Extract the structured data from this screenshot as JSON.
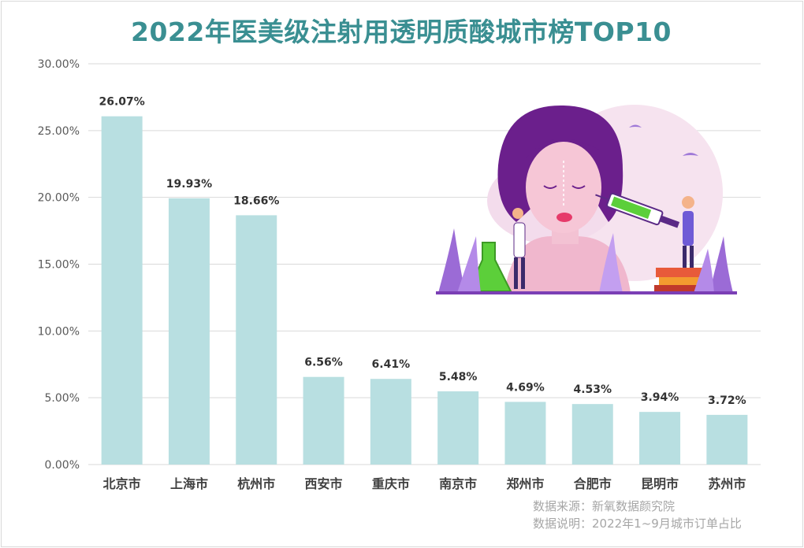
{
  "title": "2022年医美级注射用透明质酸城市榜TOP10",
  "source": {
    "line1": "数据来源：新氧数据颜究院",
    "line2": "数据说明：2022年1~9月城市订单占比"
  },
  "colors": {
    "title": "#3a8f92",
    "bar": "#b8dfe1",
    "grid": "#d9d9d9"
  },
  "illustration_icon": "woman-face-syringe-illustration",
  "chart_data": {
    "type": "bar",
    "title": "2022年医美级注射用透明质酸城市榜TOP10",
    "categories": [
      "北京市",
      "上海市",
      "杭州市",
      "西安市",
      "重庆市",
      "南京市",
      "郑州市",
      "合肥市",
      "昆明市",
      "苏州市"
    ],
    "values": [
      26.07,
      19.93,
      18.66,
      6.56,
      6.41,
      5.48,
      4.69,
      4.53,
      3.94,
      3.72
    ],
    "value_labels": [
      "26.07%",
      "19.93%",
      "18.66%",
      "6.56%",
      "6.41%",
      "5.48%",
      "4.69%",
      "4.53%",
      "3.94%",
      "3.72%"
    ],
    "yticks": [
      0,
      5,
      10,
      15,
      20,
      25,
      30
    ],
    "ytick_labels": [
      "0.00%",
      "5.00%",
      "10.00%",
      "15.00%",
      "20.00%",
      "25.00%",
      "30.00%"
    ],
    "ylim": [
      0,
      30
    ],
    "xlabel": "",
    "ylabel": "",
    "grid": true,
    "legend": "none"
  }
}
